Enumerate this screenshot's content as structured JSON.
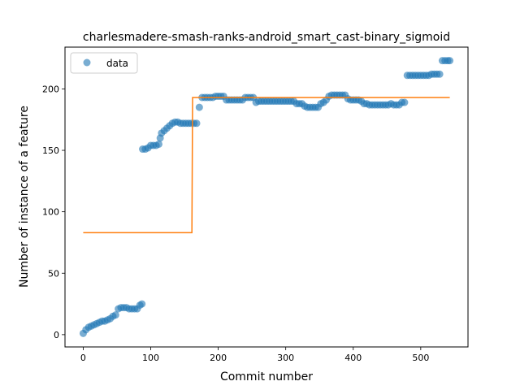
{
  "chart_data": {
    "type": "scatter",
    "title": "charlesmadere-smash-ranks-android_smart_cast-binary_sigmoid",
    "xlabel": "Commit number",
    "ylabel": "Number of instance of a feature",
    "xlim": [
      -27,
      570
    ],
    "ylim": [
      -10,
      234
    ],
    "xticks": [
      0,
      100,
      200,
      300,
      400,
      500
    ],
    "yticks": [
      0,
      50,
      100,
      150,
      200
    ],
    "grid": false,
    "legend": {
      "position": "upper-left",
      "entries": [
        "data"
      ]
    },
    "colors": {
      "data": "#1f77b4",
      "fit": "#ff7f0e"
    },
    "series": [
      {
        "name": "data",
        "kind": "points",
        "x": [
          0,
          4,
          8,
          12,
          16,
          20,
          24,
          28,
          32,
          36,
          40,
          44,
          48,
          52,
          56,
          60,
          64,
          68,
          72,
          76,
          80,
          84,
          87,
          88,
          92,
          96,
          100,
          104,
          108,
          112,
          114,
          116,
          120,
          124,
          128,
          132,
          136,
          140,
          144,
          148,
          152,
          156,
          160,
          164,
          168,
          172,
          176,
          180,
          184,
          188,
          192,
          196,
          200,
          204,
          208,
          212,
          216,
          220,
          224,
          228,
          232,
          236,
          240,
          244,
          248,
          252,
          256,
          260,
          264,
          268,
          272,
          276,
          280,
          284,
          288,
          292,
          296,
          300,
          304,
          308,
          312,
          316,
          320,
          324,
          328,
          332,
          336,
          340,
          344,
          348,
          352,
          356,
          360,
          364,
          368,
          372,
          376,
          380,
          384,
          388,
          392,
          396,
          400,
          404,
          408,
          412,
          416,
          420,
          424,
          428,
          432,
          436,
          440,
          444,
          448,
          452,
          456,
          460,
          464,
          468,
          472,
          476,
          480,
          484,
          488,
          492,
          496,
          500,
          504,
          508,
          512,
          516,
          520,
          524,
          528,
          532,
          536,
          540,
          543
        ],
        "y": [
          1,
          4,
          6,
          7,
          8,
          9,
          10,
          11,
          11,
          12,
          13,
          15,
          16,
          21,
          22,
          22,
          22,
          21,
          21,
          21,
          21,
          24,
          25,
          151,
          151,
          152,
          154,
          154,
          154,
          155,
          160,
          164,
          166,
          168,
          170,
          172,
          173,
          173,
          172,
          172,
          172,
          172,
          172,
          172,
          172,
          185,
          193,
          193,
          193,
          193,
          193,
          194,
          194,
          194,
          194,
          191,
          191,
          191,
          191,
          191,
          191,
          191,
          193,
          193,
          193,
          193,
          189,
          190,
          190,
          190,
          190,
          190,
          190,
          190,
          190,
          190,
          190,
          190,
          190,
          190,
          190,
          188,
          188,
          188,
          186,
          185,
          185,
          185,
          185,
          185,
          188,
          189,
          191,
          194,
          195,
          195,
          195,
          195,
          195,
          195,
          192,
          191,
          191,
          191,
          191,
          190,
          188,
          188,
          187,
          187,
          187,
          187,
          187,
          187,
          187,
          187,
          188,
          187,
          187,
          187,
          189,
          189,
          211,
          211,
          211,
          211,
          211,
          211,
          211,
          211,
          211,
          212,
          212,
          212,
          212,
          223,
          223,
          223,
          223
        ]
      },
      {
        "name": "",
        "kind": "step-line",
        "x": [
          0,
          161,
          162,
          543
        ],
        "y": [
          83,
          83,
          193,
          193
        ]
      }
    ]
  }
}
